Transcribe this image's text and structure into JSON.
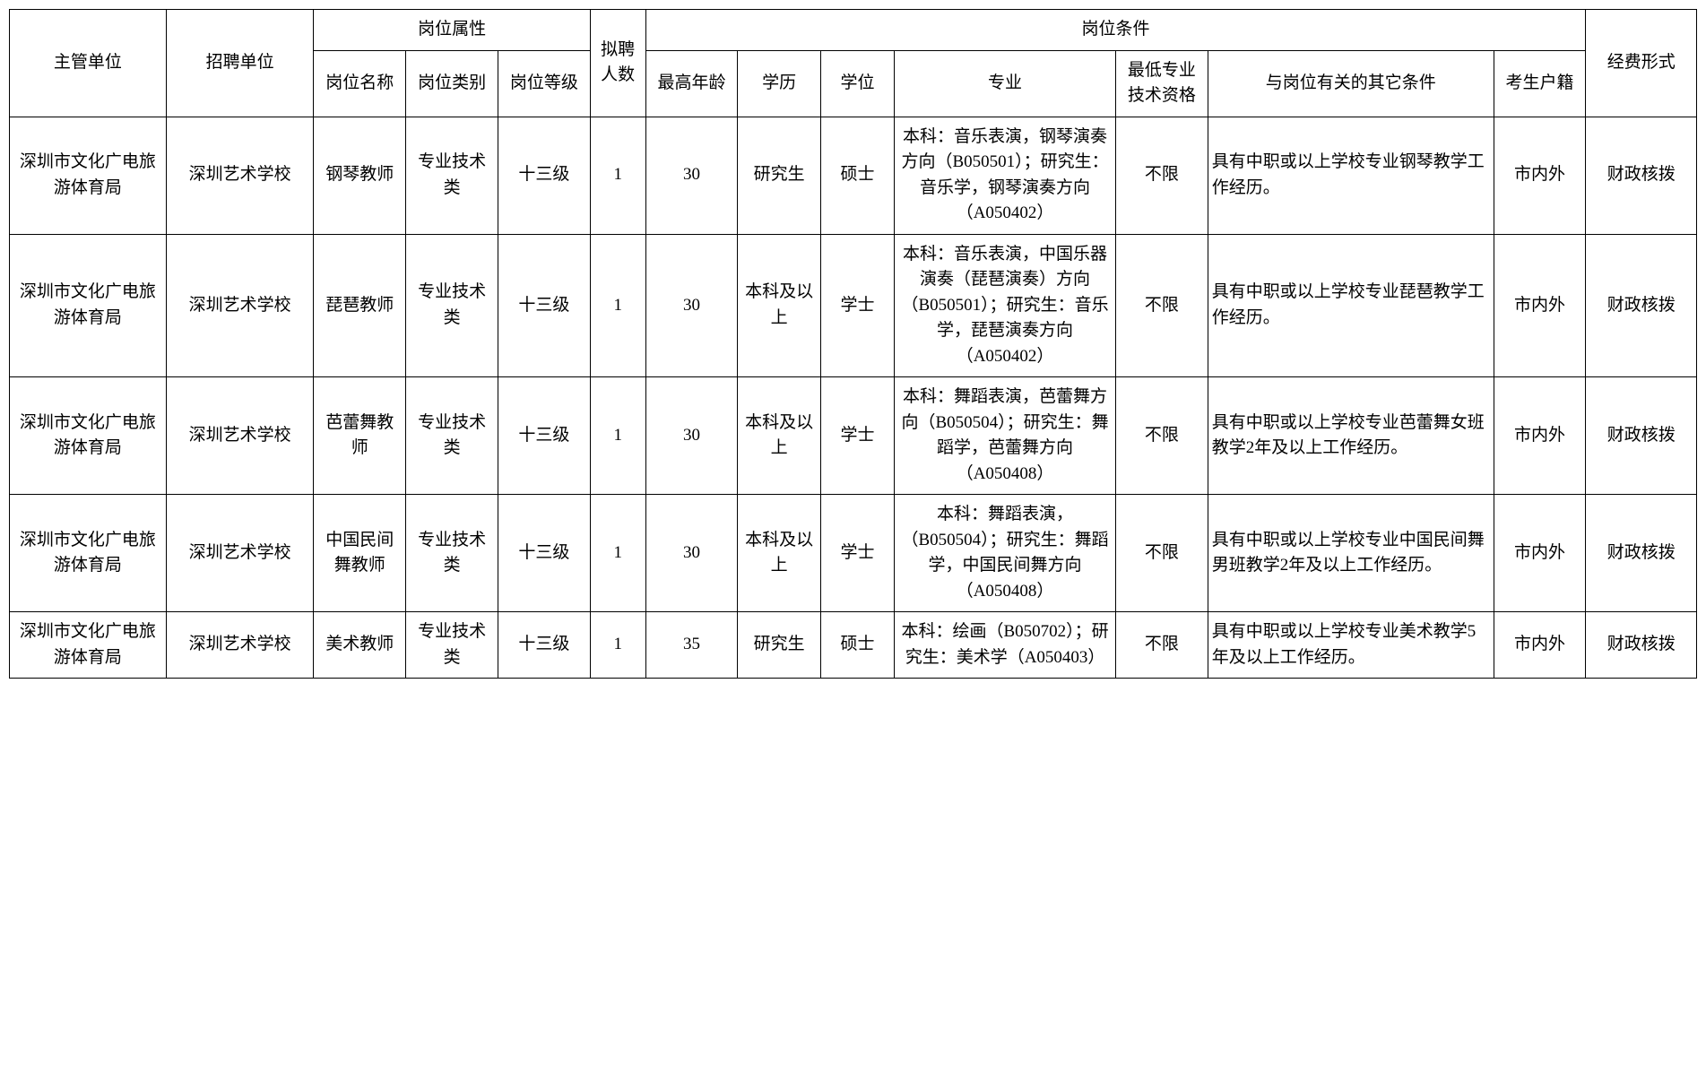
{
  "header": {
    "dept": "主管单位",
    "unit": "招聘单位",
    "positionAttr": "岗位属性",
    "posname": "岗位名称",
    "postype": "岗位类别",
    "poslevel": "岗位等级",
    "count": "拟聘人数",
    "conditions": "岗位条件",
    "age": "最高年龄",
    "edu": "学历",
    "degree": "学位",
    "major": "专业",
    "qual": "最低专业技术资格",
    "other": "与岗位有关的其它条件",
    "origin": "考生户籍",
    "fund": "经费形式"
  },
  "rows": [
    {
      "dept": "深圳市文化广电旅游体育局",
      "unit": "深圳艺术学校",
      "posname": "钢琴教师",
      "postype": "专业技术类",
      "poslevel": "十三级",
      "count": "1",
      "age": "30",
      "edu": "研究生",
      "degree": "硕士",
      "major": "本科：音乐表演，钢琴演奏方向（B050501）；研究生：音乐学，钢琴演奏方向（A050402）",
      "qual": "不限",
      "other": "具有中职或以上学校专业钢琴教学工作经历。",
      "origin": "市内外",
      "fund": "财政核拨"
    },
    {
      "dept": "深圳市文化广电旅游体育局",
      "unit": "深圳艺术学校",
      "posname": "琵琶教师",
      "postype": "专业技术类",
      "poslevel": "十三级",
      "count": "1",
      "age": "30",
      "edu": "本科及以上",
      "degree": "学士",
      "major": "本科：音乐表演，中国乐器演奏（琵琶演奏）方向（B050501）；研究生：音乐学，琵琶演奏方向（A050402）",
      "qual": "不限",
      "other": "具有中职或以上学校专业琵琶教学工作经历。",
      "origin": "市内外",
      "fund": "财政核拨"
    },
    {
      "dept": "深圳市文化广电旅游体育局",
      "unit": "深圳艺术学校",
      "posname": "芭蕾舞教师",
      "postype": "专业技术类",
      "poslevel": "十三级",
      "count": "1",
      "age": "30",
      "edu": "本科及以上",
      "degree": "学士",
      "major": "本科：舞蹈表演，芭蕾舞方向（B050504）；研究生：舞蹈学，芭蕾舞方向（A050408）",
      "qual": "不限",
      "other": "具有中职或以上学校专业芭蕾舞女班教学2年及以上工作经历。",
      "origin": "市内外",
      "fund": "财政核拨"
    },
    {
      "dept": "深圳市文化广电旅游体育局",
      "unit": "深圳艺术学校",
      "posname": "中国民间舞教师",
      "postype": "专业技术类",
      "poslevel": "十三级",
      "count": "1",
      "age": "30",
      "edu": "本科及以上",
      "degree": "学士",
      "major": "本科：舞蹈表演，（B050504）；研究生：舞蹈学，中国民间舞方向（A050408）",
      "qual": "不限",
      "other": "具有中职或以上学校专业中国民间舞男班教学2年及以上工作经历。",
      "origin": "市内外",
      "fund": "财政核拨"
    },
    {
      "dept": "深圳市文化广电旅游体育局",
      "unit": "深圳艺术学校",
      "posname": "美术教师",
      "postype": "专业技术类",
      "poslevel": "十三级",
      "count": "1",
      "age": "35",
      "edu": "研究生",
      "degree": "硕士",
      "major": "本科：绘画（B050702）；研究生：美术学（A050403）",
      "qual": "不限",
      "other": "具有中职或以上学校专业美术教学5年及以上工作经历。",
      "origin": "市内外",
      "fund": "财政核拨"
    }
  ]
}
